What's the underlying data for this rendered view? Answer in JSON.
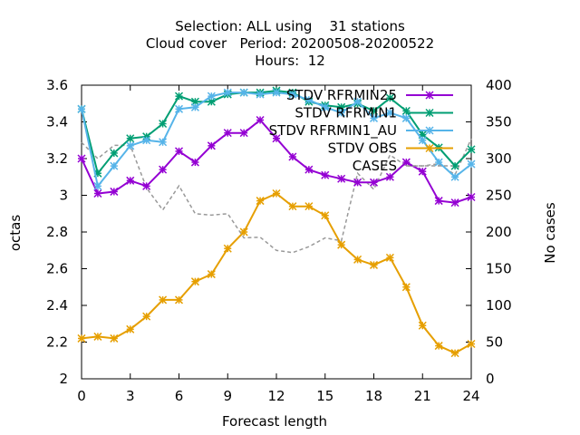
{
  "title_lines": [
    "Selection: ALL using    31 stations",
    "Cloud cover   Period: 20200508-20200522",
    "Hours:  12"
  ],
  "chart_data": {
    "type": "line",
    "xlabel": "Forecast length",
    "ylabel": "octas",
    "y2label": "No cases",
    "xlim": [
      0,
      24
    ],
    "ylim": [
      2.0,
      3.6
    ],
    "y2lim": [
      0,
      400
    ],
    "xticks": [
      0,
      3,
      6,
      9,
      12,
      15,
      18,
      21,
      24
    ],
    "yticks": [
      2.0,
      2.2,
      2.4,
      2.6,
      2.8,
      3.0,
      3.2,
      3.4,
      3.6
    ],
    "ytick_labels": [
      "2",
      "2.2",
      "2.4",
      "2.6",
      "2.8",
      "3",
      "3.2",
      "3.4",
      "3.6"
    ],
    "y2ticks": [
      0,
      50,
      100,
      150,
      200,
      250,
      300,
      350,
      400
    ],
    "legend_position": "top-right",
    "x": [
      0,
      1,
      2,
      3,
      4,
      5,
      6,
      7,
      8,
      9,
      10,
      11,
      12,
      13,
      14,
      15,
      16,
      17,
      18,
      19,
      20,
      21,
      22,
      23,
      24
    ],
    "series": [
      {
        "name": "STDV RFRMIN25",
        "color": "#9400d3",
        "axis": "y1",
        "marker": "x",
        "values": [
          3.2,
          3.01,
          3.02,
          3.08,
          3.05,
          3.14,
          3.24,
          3.18,
          3.27,
          3.34,
          3.34,
          3.41,
          3.31,
          3.21,
          3.14,
          3.11,
          3.09,
          3.07,
          3.07,
          3.1,
          3.18,
          3.13,
          2.97,
          2.96,
          2.99
        ]
      },
      {
        "name": "STDV RFRMIN1",
        "color": "#009e73",
        "axis": "y1",
        "marker": "x",
        "values": [
          3.47,
          3.12,
          3.23,
          3.31,
          3.32,
          3.39,
          3.54,
          3.51,
          3.51,
          3.55,
          3.56,
          3.56,
          3.57,
          3.56,
          3.51,
          3.49,
          3.48,
          3.5,
          3.46,
          3.53,
          3.46,
          3.33,
          3.26,
          3.16,
          3.25
        ]
      },
      {
        "name": "STDV RFRMIN1_AU",
        "color": "#56b4e9",
        "axis": "y1",
        "marker": "x",
        "values": [
          3.47,
          3.05,
          3.16,
          3.27,
          3.3,
          3.29,
          3.47,
          3.48,
          3.54,
          3.56,
          3.56,
          3.55,
          3.56,
          3.55,
          3.52,
          3.48,
          3.45,
          3.51,
          3.42,
          3.45,
          3.42,
          3.3,
          3.18,
          3.1,
          3.17
        ]
      },
      {
        "name": "STDV OBS",
        "color": "#e69f00",
        "axis": "y1",
        "marker": "x",
        "values": [
          2.22,
          2.23,
          2.22,
          2.27,
          2.34,
          2.43,
          2.43,
          2.53,
          2.57,
          2.71,
          2.8,
          2.97,
          3.01,
          2.94,
          2.94,
          2.89,
          2.73,
          2.65,
          2.62,
          2.66,
          2.5,
          2.29,
          2.18,
          2.14,
          2.19
        ]
      },
      {
        "name": "CASES",
        "color": "#999999",
        "axis": "y2",
        "marker": "none",
        "dash": true,
        "values": [
          322,
          300,
          318,
          318,
          260,
          230,
          263,
          225,
          223,
          225,
          192,
          193,
          175,
          172,
          180,
          192,
          188,
          280,
          258,
          305,
          290,
          290,
          293,
          278,
          327
        ]
      }
    ]
  }
}
